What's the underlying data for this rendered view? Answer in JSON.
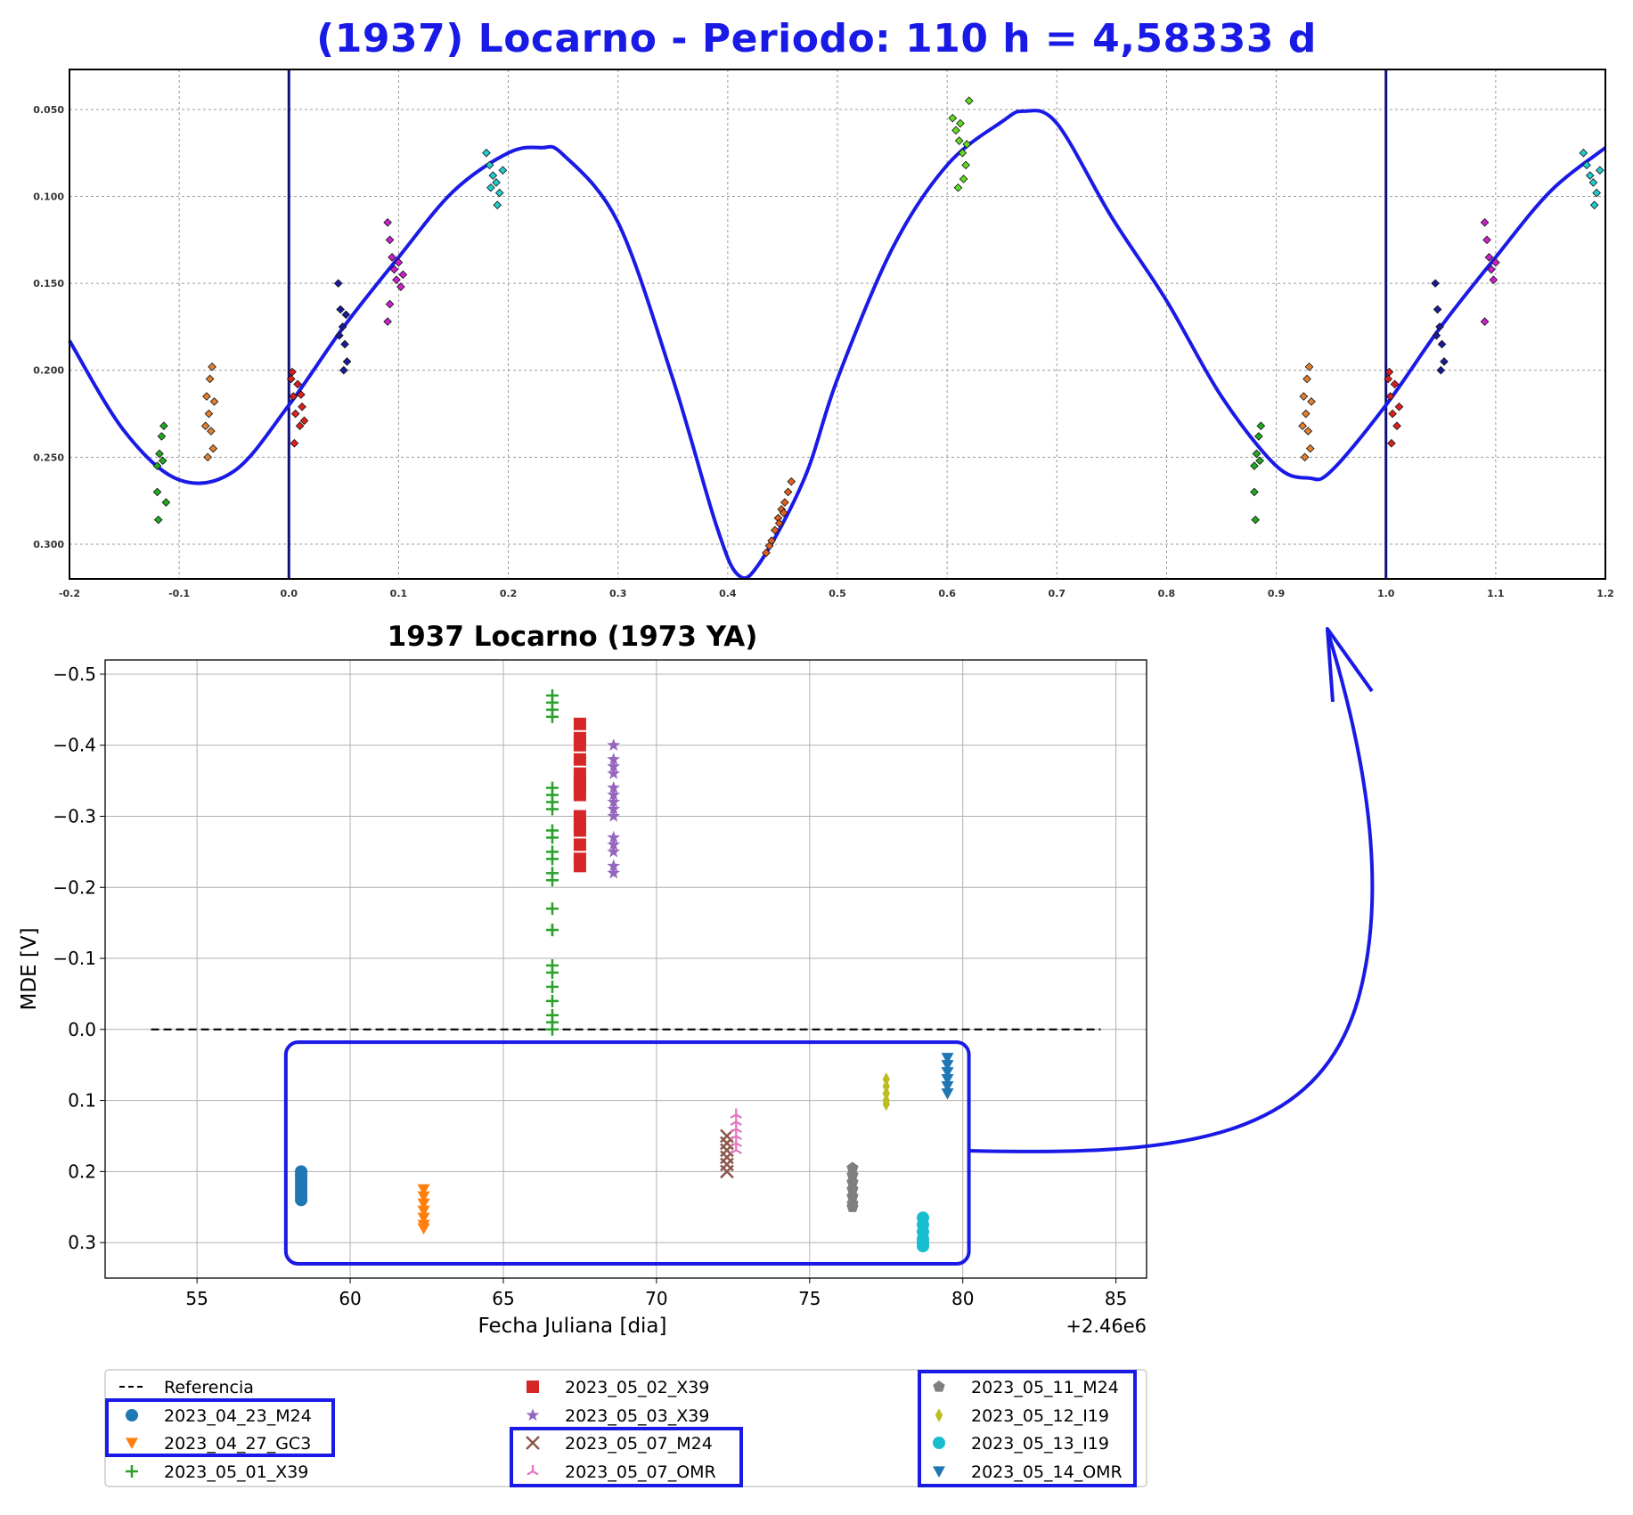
{
  "top_title": "(1937) Locarno - Periodo: 110 h = 4,58333 d",
  "chart_data": [
    {
      "type": "scatter",
      "title": "(1937) Locarno - Periodo: 110 h = 4,58333 d",
      "xlabel": "",
      "ylabel": "",
      "xlim": [
        -0.2,
        1.2
      ],
      "ylim": [
        0.32,
        0.027
      ],
      "y_inverted": true,
      "grid": true,
      "x_ticks": [
        "-0.2",
        "-0.1",
        "0.0",
        "0.1",
        "0.2",
        "0.3",
        "0.4",
        "0.5",
        "0.6",
        "0.7",
        "0.8",
        "0.9",
        "1.0",
        "1.1",
        "1.2"
      ],
      "y_ticks": [
        "0.050",
        "0.100",
        "0.150",
        "0.200",
        "0.250",
        "0.300"
      ],
      "vertical_lines": [
        0.0,
        1.0
      ],
      "fit_curve": {
        "color": "#1a1ae6",
        "points": [
          [
            -0.2,
            0.183
          ],
          [
            -0.15,
            0.235
          ],
          [
            -0.1,
            0.263
          ],
          [
            -0.05,
            0.258
          ],
          [
            0.0,
            0.22
          ],
          [
            0.05,
            0.175
          ],
          [
            0.1,
            0.135
          ],
          [
            0.15,
            0.097
          ],
          [
            0.2,
            0.075
          ],
          [
            0.23,
            0.072
          ],
          [
            0.25,
            0.076
          ],
          [
            0.3,
            0.115
          ],
          [
            0.35,
            0.205
          ],
          [
            0.39,
            0.29
          ],
          [
            0.41,
            0.318
          ],
          [
            0.43,
            0.31
          ],
          [
            0.47,
            0.262
          ],
          [
            0.5,
            0.205
          ],
          [
            0.55,
            0.13
          ],
          [
            0.6,
            0.082
          ],
          [
            0.65,
            0.057
          ],
          [
            0.67,
            0.051
          ],
          [
            0.7,
            0.058
          ],
          [
            0.75,
            0.112
          ],
          [
            0.8,
            0.16
          ],
          [
            0.85,
            0.215
          ],
          [
            0.9,
            0.255
          ],
          [
            0.93,
            0.262
          ],
          [
            0.95,
            0.258
          ],
          [
            1.0,
            0.22
          ],
          [
            1.05,
            0.175
          ],
          [
            1.1,
            0.135
          ],
          [
            1.15,
            0.097
          ],
          [
            1.2,
            0.072
          ]
        ]
      },
      "series": [
        {
          "name": "2023_04_23_M24",
          "color": "#e02020",
          "points": [
            [
              0.002,
              0.205
            ],
            [
              0.004,
              0.215
            ],
            [
              0.006,
              0.225
            ],
            [
              0.008,
              0.208
            ],
            [
              0.01,
              0.232
            ],
            [
              0.012,
              0.221
            ],
            [
              0.014,
              0.229
            ],
            [
              0.005,
              0.242
            ],
            [
              0.003,
              0.201
            ],
            [
              0.011,
              0.214
            ],
            [
              1.002,
              0.205
            ],
            [
              1.004,
              0.215
            ],
            [
              1.006,
              0.225
            ],
            [
              1.008,
              0.208
            ],
            [
              1.01,
              0.232
            ],
            [
              1.012,
              0.221
            ],
            [
              1.005,
              0.242
            ],
            [
              1.003,
              0.201
            ]
          ]
        },
        {
          "name": "2023_04_27_GC3",
          "color": "#e08030",
          "points": [
            [
              -0.075,
              0.215
            ],
            [
              -0.073,
              0.225
            ],
            [
              -0.071,
              0.235
            ],
            [
              -0.069,
              0.245
            ],
            [
              -0.072,
              0.205
            ],
            [
              -0.07,
              0.198
            ],
            [
              -0.068,
              0.218
            ],
            [
              -0.074,
              0.25
            ],
            [
              -0.076,
              0.232
            ],
            [
              0.925,
              0.215
            ],
            [
              0.927,
              0.225
            ],
            [
              0.929,
              0.235
            ],
            [
              0.931,
              0.245
            ],
            [
              0.928,
              0.205
            ],
            [
              0.93,
              0.198
            ],
            [
              0.932,
              0.218
            ],
            [
              0.926,
              0.25
            ],
            [
              0.924,
              0.232
            ]
          ]
        },
        {
          "name": "2023_05_01_X39",
          "color": "#e06020",
          "points": [
            [
              0.435,
              0.305
            ],
            [
              0.44,
              0.298
            ],
            [
              0.443,
              0.292
            ],
            [
              0.446,
              0.285
            ],
            [
              0.449,
              0.28
            ],
            [
              0.452,
              0.276
            ],
            [
              0.455,
              0.27
            ],
            [
              0.458,
              0.264
            ],
            [
              0.438,
              0.301
            ],
            [
              0.447,
              0.288
            ],
            [
              0.451,
              0.282
            ]
          ]
        },
        {
          "name": "2023_05_02_X39",
          "color": "#20aa20",
          "points": [
            [
              -0.12,
              0.255
            ],
            [
              -0.118,
              0.248
            ],
            [
              -0.116,
              0.238
            ],
            [
              -0.114,
              0.232
            ],
            [
              -0.12,
              0.27
            ],
            [
              -0.119,
              0.286
            ],
            [
              -0.112,
              0.276
            ],
            [
              -0.115,
              0.252
            ],
            [
              0.88,
              0.255
            ],
            [
              0.882,
              0.248
            ],
            [
              0.884,
              0.238
            ],
            [
              0.886,
              0.232
            ],
            [
              0.88,
              0.27
            ],
            [
              0.881,
              0.286
            ],
            [
              0.885,
              0.252
            ]
          ]
        },
        {
          "name": "2023_05_03_X39",
          "color": "#1a1a9a",
          "points": [
            [
              0.045,
              0.15
            ],
            [
              0.047,
              0.165
            ],
            [
              0.049,
              0.175
            ],
            [
              0.051,
              0.185
            ],
            [
              0.053,
              0.195
            ],
            [
              0.05,
              0.2
            ],
            [
              0.046,
              0.18
            ],
            [
              0.052,
              0.168
            ],
            [
              1.045,
              0.15
            ],
            [
              1.047,
              0.165
            ],
            [
              1.049,
              0.175
            ],
            [
              1.051,
              0.185
            ],
            [
              1.053,
              0.195
            ],
            [
              1.05,
              0.2
            ],
            [
              1.046,
              0.18
            ]
          ]
        },
        {
          "name": "2023_05_07_M24",
          "color": "#cc20cc",
          "points": [
            [
              0.09,
              0.115
            ],
            [
              0.092,
              0.125
            ],
            [
              0.094,
              0.135
            ],
            [
              0.096,
              0.142
            ],
            [
              0.098,
              0.148
            ],
            [
              0.1,
              0.138
            ],
            [
              0.102,
              0.152
            ],
            [
              0.09,
              0.172
            ],
            [
              0.092,
              0.162
            ],
            [
              0.104,
              0.145
            ],
            [
              1.09,
              0.115
            ],
            [
              1.092,
              0.125
            ],
            [
              1.094,
              0.135
            ],
            [
              1.096,
              0.142
            ],
            [
              1.098,
              0.148
            ],
            [
              1.1,
              0.138
            ],
            [
              1.09,
              0.172
            ]
          ]
        },
        {
          "name": "2023_05_07_OMR",
          "color": "#20cccc",
          "points": [
            [
              0.18,
              0.075
            ],
            [
              0.183,
              0.082
            ],
            [
              0.186,
              0.088
            ],
            [
              0.189,
              0.092
            ],
            [
              0.192,
              0.098
            ],
            [
              0.195,
              0.085
            ],
            [
              0.184,
              0.095
            ],
            [
              0.19,
              0.105
            ],
            [
              1.18,
              0.075
            ],
            [
              1.183,
              0.082
            ],
            [
              1.186,
              0.088
            ],
            [
              1.189,
              0.092
            ],
            [
              1.192,
              0.098
            ],
            [
              1.195,
              0.085
            ],
            [
              1.19,
              0.105
            ]
          ]
        },
        {
          "name": "2023_05_12_I19",
          "color": "#60dd20",
          "points": [
            [
              0.605,
              0.055
            ],
            [
              0.608,
              0.062
            ],
            [
              0.611,
              0.068
            ],
            [
              0.614,
              0.075
            ],
            [
              0.617,
              0.082
            ],
            [
              0.62,
              0.045
            ],
            [
              0.612,
              0.058
            ],
            [
              0.615,
              0.09
            ],
            [
              0.618,
              0.07
            ],
            [
              0.61,
              0.095
            ]
          ]
        }
      ]
    },
    {
      "type": "scatter",
      "title": "1937 Locarno (1973 YA)",
      "xlabel": "Fecha Juliana [dia]",
      "ylabel": "MDE [V]",
      "offset_text": "+2.46e6",
      "xlim": [
        52,
        86
      ],
      "ylim": [
        0.35,
        -0.52
      ],
      "y_inverted": true,
      "grid": true,
      "x_ticks": [
        "55",
        "60",
        "65",
        "70",
        "75",
        "80",
        "85"
      ],
      "y_ticks": [
        "−0.5",
        "−0.4",
        "−0.3",
        "−0.2",
        "−0.1",
        "0.0",
        "0.1",
        "0.2",
        "0.3"
      ],
      "reference_line": {
        "label": "Referencia",
        "y": 0.0,
        "x_from": 53.5,
        "x_to": 84.5
      },
      "legend_position": "below",
      "series": [
        {
          "name": "2023_04_23_M24",
          "marker": "circle",
          "color": "#1f77b4",
          "x": 58.4,
          "y_values": [
            0.2,
            0.205,
            0.21,
            0.215,
            0.22,
            0.225,
            0.23,
            0.235,
            0.24
          ]
        },
        {
          "name": "2023_04_27_GC3",
          "marker": "triangle-down",
          "color": "#ff7f0e",
          "x": 62.4,
          "y_values": [
            0.225,
            0.235,
            0.245,
            0.255,
            0.265,
            0.275,
            0.28
          ]
        },
        {
          "name": "2023_05_01_X39",
          "marker": "plus",
          "color": "#2ca02c",
          "x": 66.6,
          "y_values": [
            -0.47,
            -0.46,
            -0.45,
            -0.44,
            -0.34,
            -0.33,
            -0.32,
            -0.31,
            -0.28,
            -0.27,
            -0.25,
            -0.24,
            -0.22,
            -0.21,
            -0.17,
            -0.14,
            -0.14,
            -0.09,
            -0.08,
            -0.06,
            -0.04,
            -0.02,
            -0.01,
            0.0
          ]
        },
        {
          "name": "2023_05_02_X39",
          "marker": "square",
          "color": "#d62728",
          "x": 67.5,
          "y_values": [
            -0.43,
            -0.41,
            -0.4,
            -0.38,
            -0.36,
            -0.35,
            -0.34,
            -0.33,
            -0.3,
            -0.29,
            -0.28,
            -0.26,
            -0.24,
            -0.23
          ]
        },
        {
          "name": "2023_05_03_X39",
          "marker": "star",
          "color": "#9467bd",
          "x": 68.6,
          "y_values": [
            -0.4,
            -0.38,
            -0.37,
            -0.36,
            -0.34,
            -0.33,
            -0.32,
            -0.31,
            -0.3,
            -0.27,
            -0.26,
            -0.25,
            -0.23,
            -0.22
          ]
        },
        {
          "name": "2023_05_07_M24",
          "marker": "x",
          "color": "#8c564b",
          "x": 72.3,
          "y_values": [
            0.15,
            0.16,
            0.17,
            0.18,
            0.19,
            0.2
          ]
        },
        {
          "name": "2023_05_07_OMR",
          "marker": "tri-up",
          "color": "#e377c2",
          "x": 72.6,
          "y_values": [
            0.12,
            0.13,
            0.14,
            0.15,
            0.16,
            0.17
          ]
        },
        {
          "name": "2023_05_11_M24",
          "marker": "pentagon",
          "color": "#7f7f7f",
          "x": 76.4,
          "y_values": [
            0.195,
            0.205,
            0.215,
            0.225,
            0.235,
            0.245,
            0.25
          ]
        },
        {
          "name": "2023_05_12_I19",
          "marker": "diamond",
          "color": "#bcbd22",
          "x": 77.5,
          "y_values": [
            0.07,
            0.08,
            0.09,
            0.1,
            0.105
          ]
        },
        {
          "name": "2023_05_13_I19",
          "marker": "circle",
          "color": "#17becf",
          "x": 78.7,
          "y_values": [
            0.265,
            0.275,
            0.285,
            0.295,
            0.3,
            0.305
          ]
        },
        {
          "name": "2023_05_14_OMR",
          "marker": "triangle-down",
          "color": "#1f77b4",
          "x": 79.5,
          "y_values": [
            0.04,
            0.05,
            0.06,
            0.07,
            0.08,
            0.09
          ]
        }
      ],
      "legend": [
        {
          "label": "Referencia",
          "marker": "dashed-line",
          "color": "#000000"
        },
        {
          "label": "2023_04_23_M24",
          "marker": "circle",
          "color": "#1f77b4"
        },
        {
          "label": "2023_04_27_GC3",
          "marker": "triangle-down",
          "color": "#ff7f0e"
        },
        {
          "label": "2023_05_01_X39",
          "marker": "plus",
          "color": "#2ca02c"
        },
        {
          "label": "2023_05_02_X39",
          "marker": "square",
          "color": "#d62728"
        },
        {
          "label": "2023_05_03_X39",
          "marker": "star",
          "color": "#9467bd"
        },
        {
          "label": "2023_05_07_M24",
          "marker": "x",
          "color": "#8c564b"
        },
        {
          "label": "2023_05_07_OMR",
          "marker": "tri-up",
          "color": "#e377c2"
        },
        {
          "label": "2023_05_11_M24",
          "marker": "pentagon",
          "color": "#7f7f7f"
        },
        {
          "label": "2023_05_12_I19",
          "marker": "diamond",
          "color": "#bcbd22"
        },
        {
          "label": "2023_05_13_I19",
          "marker": "circle",
          "color": "#17becf"
        },
        {
          "label": "2023_05_14_OMR",
          "marker": "triangle-down",
          "color": "#1f77b4"
        }
      ]
    }
  ],
  "annotation_color": "#1a1ae6"
}
